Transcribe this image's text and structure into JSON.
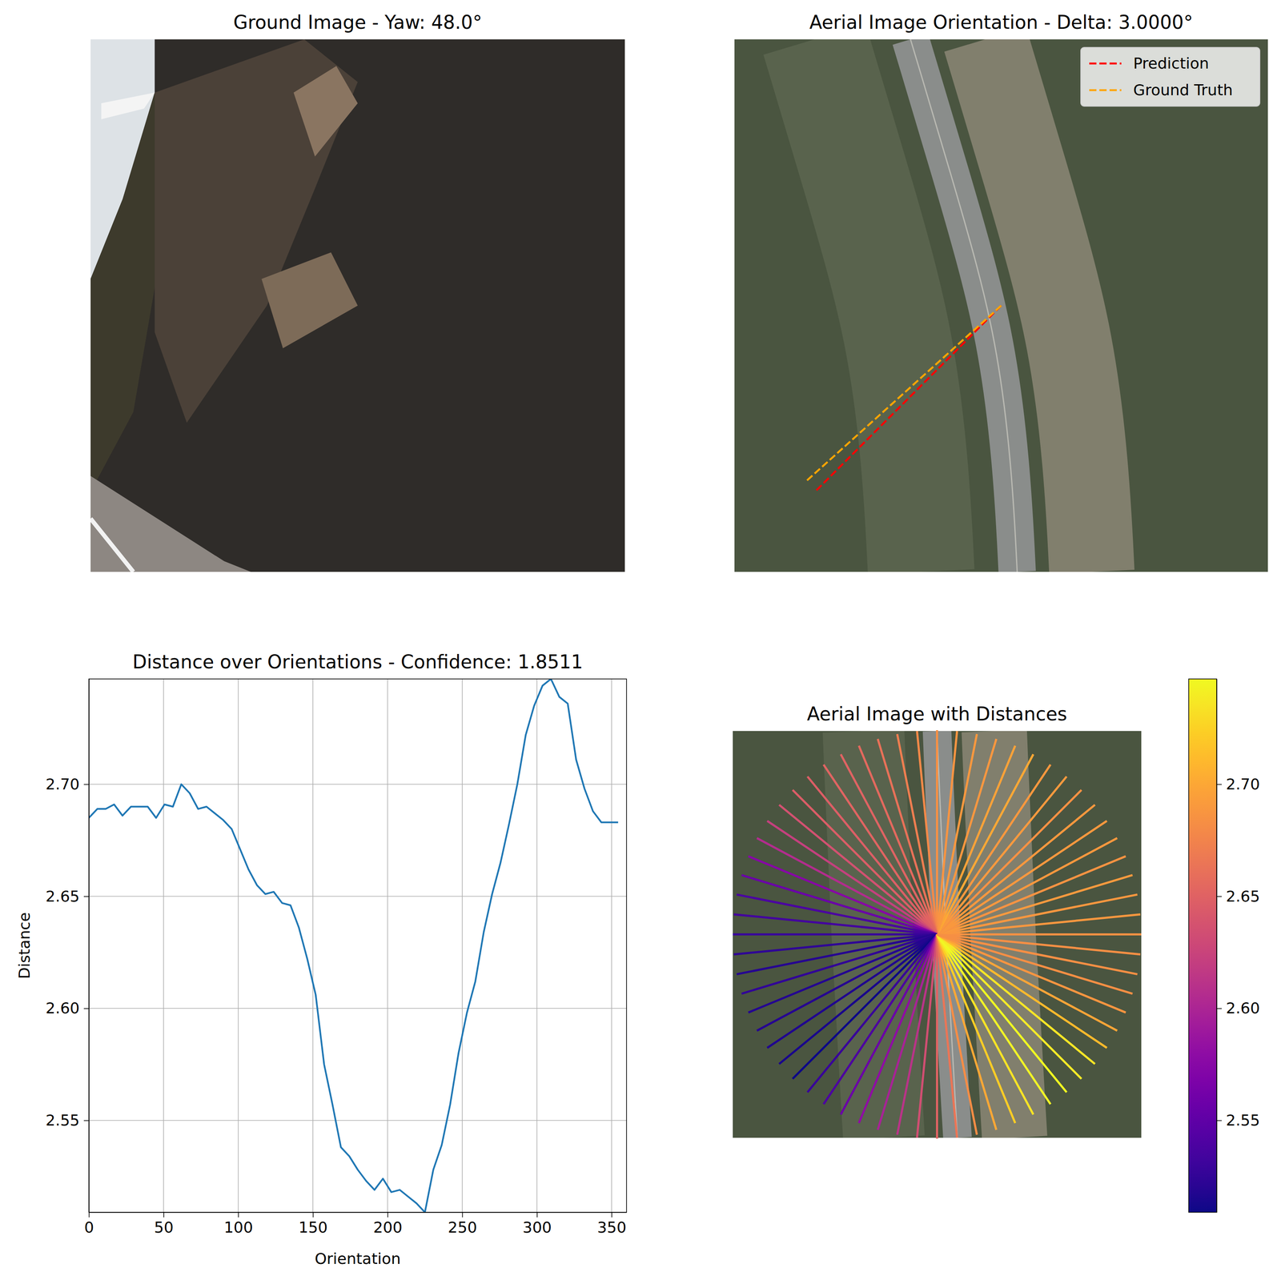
{
  "chart_data": [
    {
      "type": "image",
      "title": "Ground Image - Yaw: 48.0°"
    },
    {
      "type": "orientation",
      "title": "Aerial Image Orientation - Delta: 3.0000°",
      "legend": "upper right",
      "series": [
        {
          "name": "Prediction",
          "color": "#ff0000",
          "line_style": "dashed",
          "values": [
            45
          ]
        },
        {
          "name": "Ground Truth",
          "color": "#ffa500",
          "line_style": "dashed",
          "values": [
            48
          ]
        }
      ]
    },
    {
      "type": "line",
      "title": "Distance over Orientations - Confidence: 1.8511",
      "x_label": "Orientation",
      "y_label": "Distance",
      "color": "#1f77b4",
      "grid": true,
      "x": [
        0,
        5.625,
        11.25,
        16.875,
        22.5,
        28.125,
        33.75,
        39.375,
        45,
        50.625,
        56.25,
        61.875,
        67.5,
        73.125,
        78.75,
        84.375,
        90,
        95.625,
        101.25,
        106.875,
        112.5,
        118.125,
        123.75,
        129.375,
        135,
        140.625,
        146.25,
        151.875,
        157.5,
        163.125,
        168.75,
        174.375,
        180,
        185.625,
        191.25,
        196.875,
        202.5,
        208.125,
        213.75,
        219.375,
        225,
        230.625,
        236.25,
        241.875,
        247.5,
        253.125,
        258.75,
        264.375,
        270,
        275.625,
        281.25,
        286.875,
        292.5,
        298.125,
        303.75,
        309.375,
        315,
        320.625,
        326.25,
        331.875,
        337.5,
        343.125,
        348.75,
        354.375
      ],
      "values": [
        2.685,
        2.689,
        2.689,
        2.691,
        2.686,
        2.69,
        2.69,
        2.69,
        2.685,
        2.691,
        2.69,
        2.7,
        2.696,
        2.689,
        2.69,
        2.687,
        2.684,
        2.68,
        2.671,
        2.662,
        2.655,
        2.651,
        2.652,
        2.647,
        2.646,
        2.636,
        2.622,
        2.606,
        2.575,
        2.557,
        2.538,
        2.534,
        2.528,
        2.523,
        2.519,
        2.524,
        2.518,
        2.519,
        2.516,
        2.513,
        2.509,
        2.528,
        2.539,
        2.557,
        2.58,
        2.598,
        2.612,
        2.634,
        2.651,
        2.665,
        2.682,
        2.7,
        2.722,
        2.735,
        2.744,
        2.747,
        2.739,
        2.736,
        2.711,
        2.698,
        2.688,
        2.683,
        2.683,
        2.683
      ],
      "xlim": [
        0,
        360
      ],
      "ylim": [
        2.509,
        2.747
      ],
      "xticks": [
        0,
        50,
        100,
        150,
        200,
        250,
        300,
        350
      ],
      "yticks": [
        2.55,
        {
          "value": 2.6,
          "label": "2.60"
        },
        2.65,
        {
          "value": 2.7,
          "label": "2.70"
        }
      ]
    },
    {
      "type": "radial",
      "title": "Aerial Image with Distances",
      "x": [
        0,
        5.625,
        11.25,
        16.875,
        22.5,
        28.125,
        33.75,
        39.375,
        45,
        50.625,
        56.25,
        61.875,
        67.5,
        73.125,
        78.75,
        84.375,
        90,
        95.625,
        101.25,
        106.875,
        112.5,
        118.125,
        123.75,
        129.375,
        135,
        140.625,
        146.25,
        151.875,
        157.5,
        163.125,
        168.75,
        174.375,
        180,
        185.625,
        191.25,
        196.875,
        202.5,
        208.125,
        213.75,
        219.375,
        225,
        230.625,
        236.25,
        241.875,
        247.5,
        253.125,
        258.75,
        264.375,
        270,
        275.625,
        281.25,
        286.875,
        292.5,
        298.125,
        303.75,
        309.375,
        315,
        320.625,
        326.25,
        331.875,
        337.5,
        343.125,
        348.75,
        354.375
      ],
      "values": [
        2.685,
        2.689,
        2.689,
        2.691,
        2.686,
        2.69,
        2.69,
        2.69,
        2.685,
        2.691,
        2.69,
        2.7,
        2.696,
        2.689,
        2.69,
        2.687,
        2.684,
        2.68,
        2.671,
        2.662,
        2.655,
        2.651,
        2.652,
        2.647,
        2.646,
        2.636,
        2.622,
        2.606,
        2.575,
        2.557,
        2.538,
        2.534,
        2.528,
        2.523,
        2.519,
        2.524,
        2.518,
        2.519,
        2.516,
        2.513,
        2.509,
        2.528,
        2.539,
        2.557,
        2.58,
        2.598,
        2.612,
        2.634,
        2.651,
        2.665,
        2.682,
        2.7,
        2.722,
        2.735,
        2.744,
        2.747,
        2.739,
        2.736,
        2.711,
        2.698,
        2.688,
        2.683,
        2.683,
        2.683
      ],
      "colorbar": {
        "range": [
          2.509,
          2.747
        ],
        "ticks": [
          2.55,
          {
            "value": 2.6,
            "label": "2.60"
          },
          2.65,
          {
            "value": 2.7,
            "label": "2.70"
          }
        ]
      }
    }
  ]
}
